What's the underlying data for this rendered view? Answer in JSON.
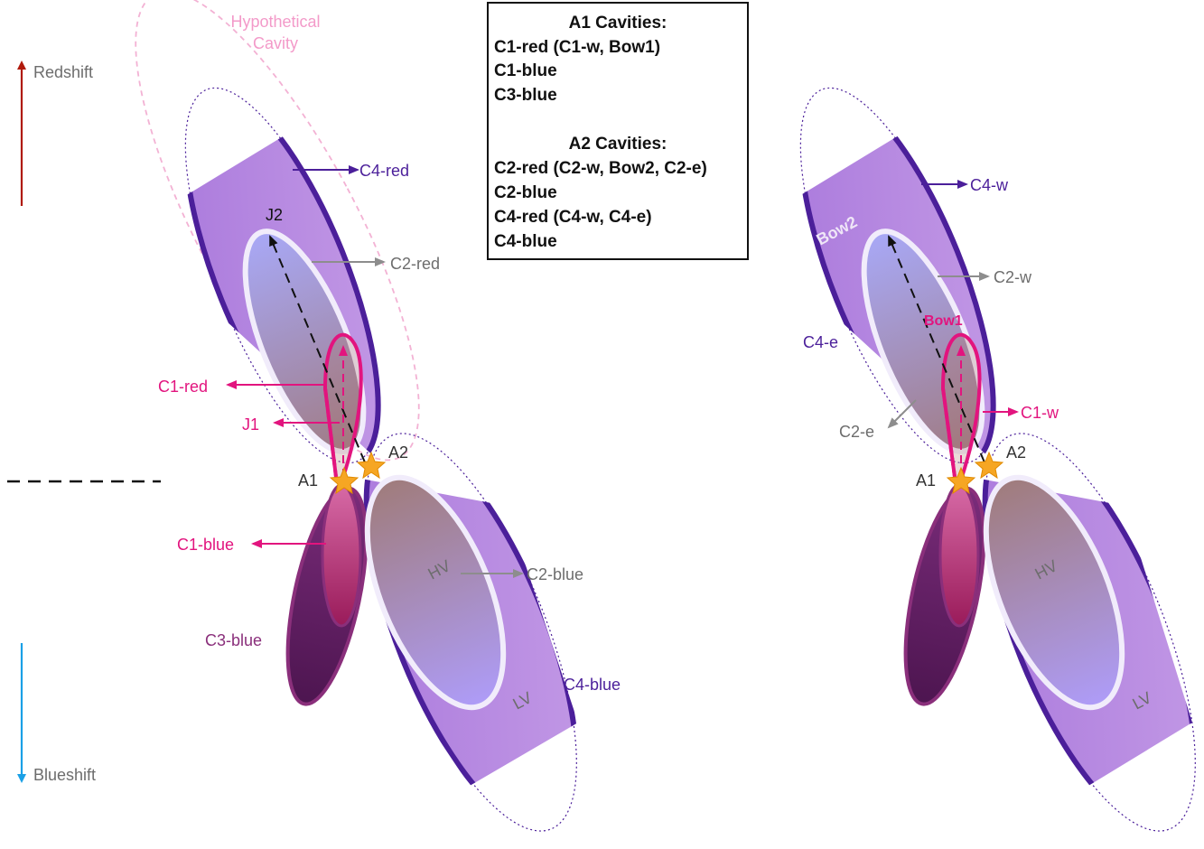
{
  "colors": {
    "c4_outline": "#4b1f9a",
    "c4_fill": "#b085df",
    "c2_outline": "#f1ecfb",
    "c1_magenta": "#e2147e",
    "c3_purple": "#8a2f7b",
    "redshift_arrow": "#b01a0c",
    "blueshift_arrow": "#1aa0e6",
    "grey_label": "#6d6d6d",
    "hypothetical_pink": "#f39ac9",
    "star": "#f6a623"
  },
  "axis": {
    "redshift": "Redshift",
    "blueshift": "Blueshift"
  },
  "legend_box": {
    "a1_title": "A1 Cavities:",
    "a1_items": [
      "C1-red (C1-w, Bow1)",
      "C1-blue",
      "C3-blue"
    ],
    "a2_title": "A2 Cavities:",
    "a2_items": [
      "C2-red (C2-w, Bow2, C2-e)",
      "C2-blue",
      "C4-red (C4-w, C4-e)",
      "C4-blue"
    ]
  },
  "left_panel": {
    "hypothetical_1": "Hypothetical",
    "hypothetical_2": "Cavity",
    "c4_red": "C4-red",
    "j2": "J2",
    "c2_red": "C2-red",
    "c1_red": "C1-red",
    "j1": "J1",
    "a1": "A1",
    "a2": "A2",
    "c1_blue": "C1-blue",
    "hv": "HV",
    "c2_blue": "C2-blue",
    "c3_blue": "C3-blue",
    "c4_blue": "C4-blue",
    "lv": "LV"
  },
  "right_panel": {
    "c4_w": "C4-w",
    "bow2": "Bow2",
    "c2_w": "C2-w",
    "bow1": "Bow1",
    "c4_e": "C4-e",
    "c1_w": "C1-w",
    "c2_e": "C2-e",
    "a1": "A1",
    "a2": "A2",
    "hv": "HV",
    "lv": "LV"
  }
}
